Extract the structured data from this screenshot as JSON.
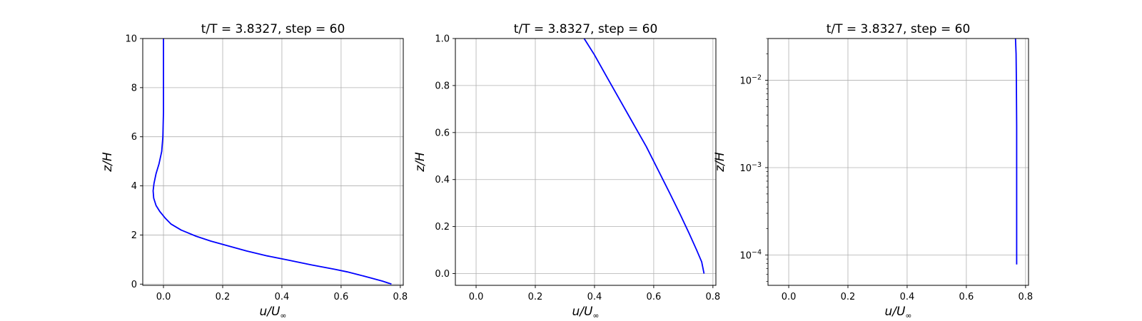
{
  "chart_data": [
    {
      "type": "line",
      "title": "t/T = 3.8327, step = 60",
      "xlabel": "u/U_∞",
      "ylabel": "z/H",
      "xlim": [
        -0.07,
        0.81
      ],
      "ylim": [
        -0.05,
        10
      ],
      "yscale": "linear",
      "grid": true,
      "xticks": [
        0.0,
        0.2,
        0.4,
        0.6,
        0.8
      ],
      "xtick_labels": [
        "0.0",
        "0.2",
        "0.4",
        "0.6",
        "0.8"
      ],
      "yticks": [
        0,
        2,
        4,
        6,
        8,
        10
      ],
      "ytick_labels": [
        "0",
        "2",
        "4",
        "6",
        "8",
        "10"
      ],
      "series": [
        {
          "color": "#0000ff",
          "x": [
            0.77,
            0.74,
            0.7,
            0.66,
            0.62,
            0.58,
            0.5,
            0.42,
            0.35,
            0.28,
            0.22,
            0.16,
            0.11,
            0.06,
            0.025,
            0.005,
            -0.012,
            -0.025,
            -0.033,
            -0.035,
            -0.032,
            -0.025,
            -0.015,
            -0.006,
            -0.002,
            0.0,
            0.0,
            0.0,
            0.0
          ],
          "y": [
            0.0,
            0.12,
            0.25,
            0.38,
            0.5,
            0.6,
            0.78,
            0.98,
            1.15,
            1.35,
            1.55,
            1.75,
            1.95,
            2.2,
            2.45,
            2.7,
            2.95,
            3.2,
            3.5,
            3.8,
            4.1,
            4.5,
            4.9,
            5.4,
            6.0,
            7.0,
            8.0,
            9.0,
            10.0
          ]
        }
      ]
    },
    {
      "type": "line",
      "title": "t/T = 3.8327, step = 60",
      "xlabel": "u/U_∞",
      "ylabel": "z/H",
      "xlim": [
        -0.07,
        0.81
      ],
      "ylim": [
        -0.05,
        1.0
      ],
      "yscale": "linear",
      "grid": true,
      "xticks": [
        0.0,
        0.2,
        0.4,
        0.6,
        0.8
      ],
      "xtick_labels": [
        "0.0",
        "0.2",
        "0.4",
        "0.6",
        "0.8"
      ],
      "yticks": [
        0.0,
        0.2,
        0.4,
        0.6,
        0.8,
        1.0
      ],
      "ytick_labels": [
        "0.0",
        "0.2",
        "0.4",
        "0.6",
        "0.8",
        "1.0"
      ],
      "series": [
        {
          "color": "#0000ff",
          "x": [
            0.77,
            0.762,
            0.745,
            0.72,
            0.69,
            0.655,
            0.615,
            0.575,
            0.53,
            0.485,
            0.44,
            0.4,
            0.365
          ],
          "y": [
            0.0,
            0.05,
            0.1,
            0.17,
            0.25,
            0.34,
            0.44,
            0.54,
            0.64,
            0.74,
            0.84,
            0.93,
            1.0
          ]
        }
      ]
    },
    {
      "type": "line",
      "title": "t/T = 3.8327, step = 60",
      "xlabel": "u/U_∞",
      "ylabel": "z/H",
      "xlim": [
        -0.07,
        0.81
      ],
      "ylim": [
        4.5e-05,
        0.03
      ],
      "yscale": "log",
      "grid": true,
      "xticks": [
        0.0,
        0.2,
        0.4,
        0.6,
        0.8
      ],
      "xtick_labels": [
        "0.0",
        "0.2",
        "0.4",
        "0.6",
        "0.8"
      ],
      "yticks": [
        0.0001,
        0.001,
        0.01
      ],
      "ytick_bases": [
        "10",
        "10",
        "10"
      ],
      "ytick_exponents": [
        "−4",
        "−3",
        "−2"
      ],
      "series": [
        {
          "color": "#0000ff",
          "x": [
            0.77,
            0.77,
            0.77,
            0.77,
            0.769,
            0.768,
            0.766
          ],
          "y": [
            7.8e-05,
            0.0003,
            0.001,
            0.003,
            0.01,
            0.02,
            0.03
          ]
        }
      ]
    }
  ]
}
